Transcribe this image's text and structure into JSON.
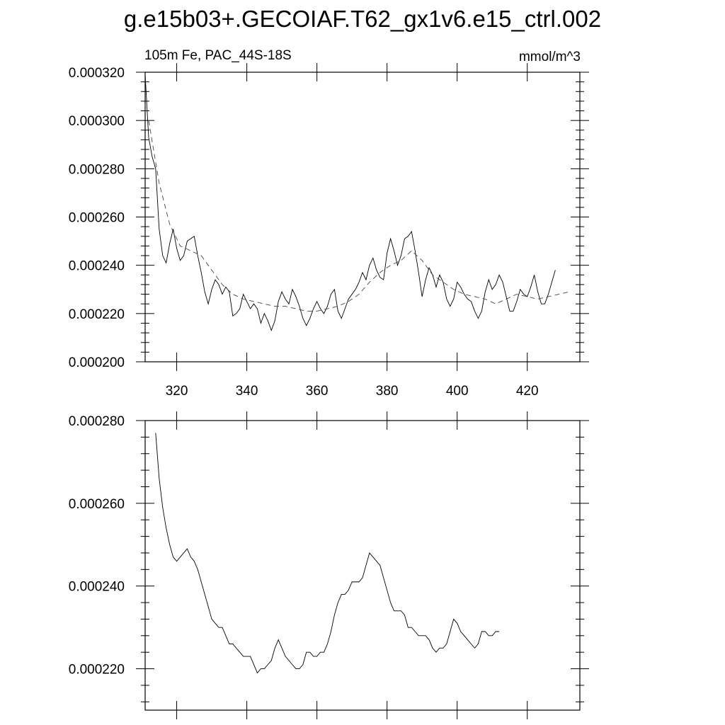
{
  "title": "g.e15b03+.GECOIAF.T62_gx1v6.e15_ctrl.002",
  "chart_data": [
    {
      "type": "line",
      "left_label": "105m Fe, PAC_44S-18S",
      "right_label": "mmol/m^3",
      "xlim": [
        311,
        435
      ],
      "ylim": [
        0.0002,
        0.00032
      ],
      "xticks": [
        320,
        340,
        360,
        380,
        400,
        420
      ],
      "yticks": [
        "0.000200",
        "0.000220",
        "0.000240",
        "0.000260",
        "0.000280",
        "0.000300",
        "0.000320"
      ],
      "grid": false,
      "series": [
        {
          "style": "solid",
          "x0": 311,
          "dx": 1,
          "values": [
            0.000319,
            0.000293,
            0.000285,
            0.00028,
            0.000255,
            0.000244,
            0.000241,
            0.000249,
            0.000255,
            0.000247,
            0.000242,
            0.000244,
            0.00025,
            0.000251,
            0.000252,
            0.000244,
            0.000237,
            0.000229,
            0.000224,
            0.00023,
            0.000234,
            0.000232,
            0.000228,
            0.000231,
            0.000229,
            0.000219,
            0.00022,
            0.000222,
            0.000228,
            0.000225,
            0.000222,
            0.000224,
            0.000222,
            0.000216,
            0.00022,
            0.000217,
            0.000213,
            0.000217,
            0.000225,
            0.000229,
            0.000226,
            0.000224,
            0.00023,
            0.000227,
            0.000223,
            0.000218,
            0.000215,
            0.000218,
            0.000222,
            0.000225,
            0.000222,
            0.00022,
            0.000223,
            0.000228,
            0.00023,
            0.000221,
            0.000218,
            0.000222,
            0.000226,
            0.000228,
            0.00023,
            0.000233,
            0.000237,
            0.000234,
            0.00024,
            0.000243,
            0.000238,
            0.000235,
            0.000234,
            0.000245,
            0.000251,
            0.000246,
            0.00024,
            0.000244,
            0.000251,
            0.000252,
            0.000254,
            0.000246,
            0.000237,
            0.000227,
            0.000234,
            0.000239,
            0.000236,
            0.000231,
            0.000236,
            0.000233,
            0.000226,
            0.000223,
            0.000226,
            0.000233,
            0.000231,
            0.000228,
            0.000226,
            0.000225,
            0.000221,
            0.000218,
            0.000221,
            0.000229,
            0.000234,
            0.00023,
            0.000232,
            0.000236,
            0.000233,
            0.000227,
            0.000221,
            0.000221,
            0.000225,
            0.00023,
            0.000228,
            0.000227,
            0.000231,
            0.000236,
            0.000229,
            0.000224,
            0.000224,
            0.000228,
            0.000233,
            0.000238
          ]
        },
        {
          "style": "dashed",
          "x": [
            312,
            315,
            318,
            321,
            324,
            327,
            330,
            333,
            336,
            339,
            342,
            345,
            348,
            351,
            354,
            357,
            360,
            363,
            366,
            369,
            372,
            375,
            378,
            381,
            384,
            387,
            390,
            393,
            396,
            399,
            402,
            405,
            408,
            411,
            414,
            417,
            420,
            423,
            426,
            429,
            432
          ],
          "values": [
            0.0003,
            0.000274,
            0.000257,
            0.000248,
            0.000246,
            0.000244,
            0.000238,
            0.000232,
            0.000228,
            0.000226,
            0.000225,
            0.000224,
            0.000223,
            0.000223,
            0.000222,
            0.000221,
            0.000221,
            0.000222,
            0.000223,
            0.000225,
            0.000228,
            0.000233,
            0.000237,
            0.00024,
            0.000242,
            0.000246,
            0.000242,
            0.000236,
            0.000233,
            0.00023,
            0.000228,
            0.000227,
            0.000226,
            0.000224,
            0.000226,
            0.000228,
            0.000227,
            0.000226,
            0.000227,
            0.000228,
            0.000229
          ]
        }
      ]
    },
    {
      "type": "line",
      "xlim": [
        311,
        435
      ],
      "ylim": [
        0.00021,
        0.00028
      ],
      "xticks": [
        320,
        340,
        360,
        380,
        400,
        420
      ],
      "yticks": [
        "0.000220",
        "0.000240",
        "0.000260",
        "0.000280"
      ],
      "grid": false,
      "series": [
        {
          "style": "solid",
          "x0": 314,
          "dx": 1,
          "values": [
            0.000277,
            0.000266,
            0.000259,
            0.000254,
            0.00025,
            0.000247,
            0.000246,
            0.000247,
            0.000248,
            0.000249,
            0.000247,
            0.000246,
            0.000244,
            0.000241,
            0.000238,
            0.000235,
            0.000232,
            0.000231,
            0.00023,
            0.00023,
            0.000228,
            0.000226,
            0.000226,
            0.000225,
            0.000224,
            0.000223,
            0.000223,
            0.000223,
            0.000221,
            0.000219,
            0.00022,
            0.00022,
            0.000221,
            0.000222,
            0.000225,
            0.000227,
            0.000225,
            0.000223,
            0.000222,
            0.000221,
            0.00022,
            0.00022,
            0.000221,
            0.000224,
            0.000224,
            0.000223,
            0.000223,
            0.000224,
            0.000224,
            0.000226,
            0.000229,
            0.000233,
            0.000236,
            0.000238,
            0.000238,
            0.000239,
            0.000241,
            0.000241,
            0.000241,
            0.000242,
            0.000245,
            0.000248,
            0.000247,
            0.000246,
            0.000245,
            0.000242,
            0.000239,
            0.000236,
            0.000234,
            0.000234,
            0.000234,
            0.000233,
            0.00023,
            0.00023,
            0.000229,
            0.000228,
            0.000228,
            0.000228,
            0.000227,
            0.000225,
            0.000224,
            0.000225,
            0.000225,
            0.000226,
            0.000229,
            0.000232,
            0.000231,
            0.000229,
            0.000228,
            0.000227,
            0.000226,
            0.000225,
            0.000226,
            0.000229,
            0.000229,
            0.000228,
            0.000228,
            0.000229,
            0.000229
          ]
        }
      ]
    }
  ]
}
